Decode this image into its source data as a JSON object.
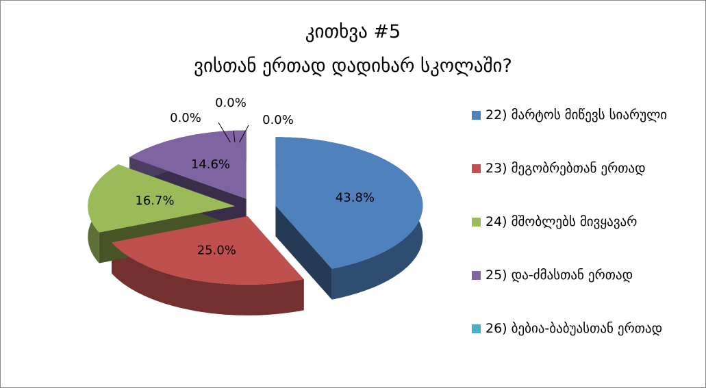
{
  "chart_data": {
    "type": "pie3d",
    "title": "კითხვა #5",
    "subtitle": "ვისთან ერთად დადიხარ სკოლაში?",
    "categories": [
      "22)  მარტოს მიწევს სიარული",
      "23)  მეგობრებთან ერთად",
      "24)  მშობლებს მივყავარ",
      "25)  და-ძმასთან ერთად",
      "26)  ბებია-ბაბუასთან ერთად",
      null,
      null
    ],
    "values": [
      43.8,
      25.0,
      16.7,
      14.6,
      0.0,
      0.0,
      0.0
    ],
    "value_labels": [
      "43.8%",
      "25.0%",
      "16.7%",
      "14.6%",
      "0.0%",
      "0.0%",
      "0.0%"
    ],
    "colors": [
      "#4f81bd",
      "#c0504d",
      "#9bbb59",
      "#8064a2",
      "#4bacc6",
      "#f79646",
      "#2c4d75"
    ],
    "legend": "right"
  }
}
